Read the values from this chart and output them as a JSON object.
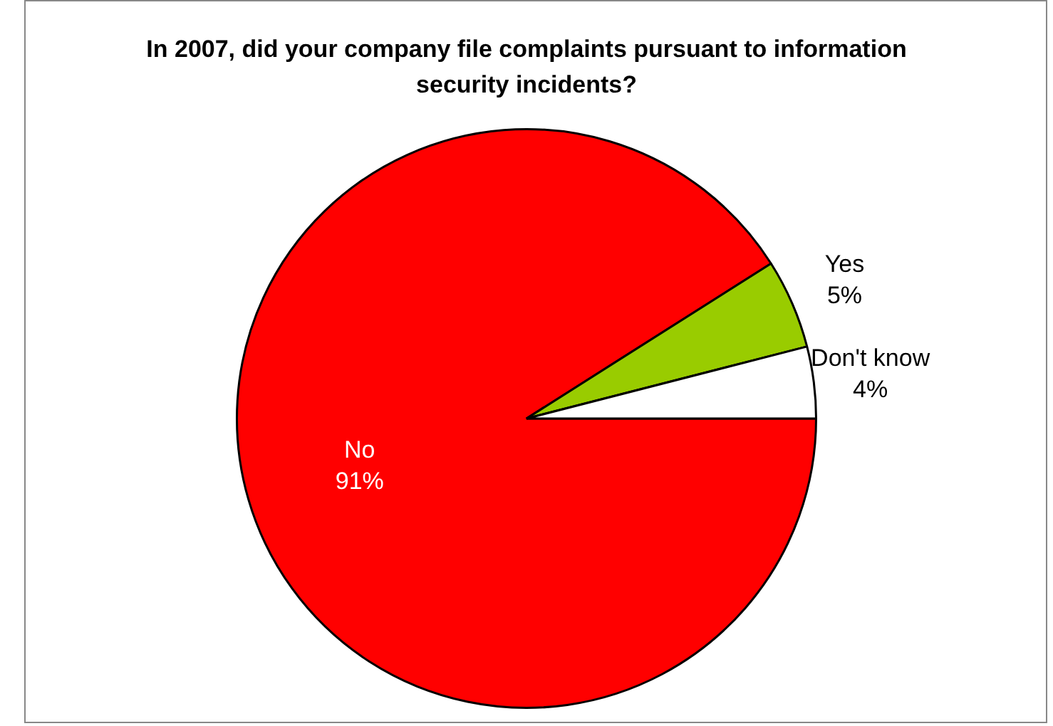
{
  "chart_data": {
    "type": "pie",
    "title": "In 2007, did your company file complaints pursuant to information security incidents?",
    "categories": [
      "No",
      "Yes",
      "Don't know"
    ],
    "values": [
      91,
      5,
      4
    ],
    "value_labels": [
      "91%",
      "5%",
      "4%"
    ],
    "colors": [
      "#ff0000",
      "#99cc00",
      "#ffffff"
    ],
    "legend": false
  }
}
